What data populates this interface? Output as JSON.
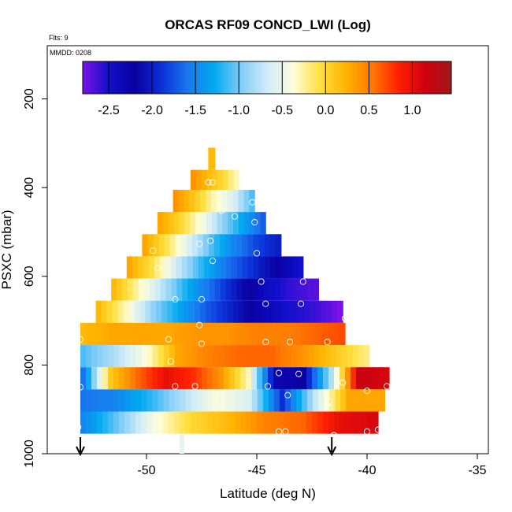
{
  "chart_data": {
    "type": "heatmap",
    "title": "ORCAS RF09 CONCD_LWI (Log)",
    "flight_label": "Flts: 9",
    "date_label": "MMDD: 0208",
    "xlabel": "Latitude (deg N)",
    "ylabel": "PSXC (mbar)",
    "xlim": [
      -54.5,
      -34.5
    ],
    "ylim": [
      1000,
      80
    ],
    "x_ticks": [
      -50,
      -45,
      -40,
      -35
    ],
    "x_tick_labels": [
      "-50",
      "-45",
      "-40",
      "-35"
    ],
    "y_ticks": [
      200,
      400,
      600,
      800,
      1000
    ],
    "y_tick_labels": [
      "200",
      "400",
      "600",
      "800",
      "1000"
    ],
    "colorbar": {
      "range": [
        -2.8,
        1.45
      ],
      "ticks": [
        -2.5,
        -2.0,
        -1.5,
        -1.0,
        -0.5,
        0.0,
        0.5,
        1.0
      ],
      "tick_labels": [
        "-2.5",
        "-2.0",
        "-1.5",
        "-1.0",
        "-0.5",
        "0.0",
        "0.5",
        "1.0"
      ],
      "colors": [
        "#7a12e6",
        "#1010cc",
        "#0a00a0",
        "#0a30d8",
        "#1a78f0",
        "#00aaf0",
        "#80ccf8",
        "#d0ecf8",
        "#fefedc",
        "#ffe040",
        "#ffb400",
        "#ff7800",
        "#ff2000",
        "#d00010",
        "#a01818"
      ]
    },
    "bands": [
      {
        "p_top": 310,
        "p_bottom": 360,
        "lat_start": -47.2,
        "lat_end": -46.9,
        "values": [
          0.2
        ]
      },
      {
        "p_top": 360,
        "p_bottom": 405,
        "lat_start": -48.0,
        "lat_end": -45.8,
        "values": [
          0.4,
          0.2,
          0.0,
          -0.3
        ]
      },
      {
        "p_top": 405,
        "p_bottom": 455,
        "lat_start": -48.8,
        "lat_end": -45.1,
        "values": [
          0.4,
          0.1,
          -0.3,
          -0.6,
          -1.1
        ]
      },
      {
        "p_top": 455,
        "p_bottom": 505,
        "lat_start": -49.5,
        "lat_end": -44.6,
        "values": [
          0.3,
          0.0,
          -0.4,
          -0.9,
          -1.3,
          -1.7
        ]
      },
      {
        "p_top": 505,
        "p_bottom": 555,
        "lat_start": -50.2,
        "lat_end": -43.9,
        "values": [
          0.3,
          -0.1,
          -0.6,
          -1.1,
          -1.5,
          -1.8,
          -2.0
        ]
      },
      {
        "p_top": 555,
        "p_bottom": 605,
        "lat_start": -50.9,
        "lat_end": -42.9,
        "values": [
          0.3,
          -0.1,
          -0.7,
          -1.2,
          -1.6,
          -1.9,
          -2.2,
          -2.5
        ]
      },
      {
        "p_top": 605,
        "p_bottom": 655,
        "lat_start": -51.6,
        "lat_end": -42.2,
        "values": [
          0.2,
          -0.3,
          -0.8,
          -1.3,
          -1.7,
          -2.1,
          -2.4,
          -2.6,
          -2.7
        ]
      },
      {
        "p_top": 655,
        "p_bottom": 705,
        "lat_start": -52.3,
        "lat_end": -41.1,
        "values": [
          0.2,
          -0.3,
          -0.9,
          -1.3,
          -1.7,
          -2.0,
          -2.3,
          -2.5,
          -2.6,
          -2.8
        ]
      },
      {
        "p_top": 705,
        "p_bottom": 755,
        "lat_start": -53.0,
        "lat_end": -41.0,
        "values": [
          0.2,
          0.3,
          0.3,
          0.3,
          0.4,
          0.4,
          0.5,
          0.5,
          0.6,
          0.7
        ]
      },
      {
        "p_top": 755,
        "p_bottom": 805,
        "lat_start": -53.0,
        "lat_end": -39.9,
        "values": [
          -1.1,
          -0.8,
          -0.4,
          0.3,
          0.5,
          0.6,
          0.6,
          0.4,
          0.1,
          -0.2
        ]
      },
      {
        "p_top": 805,
        "p_bottom": 855,
        "lat_start": -53.0,
        "lat_end": -39.0,
        "values": [
          -1.6,
          0.1,
          0.6,
          1.0,
          0.8,
          0.4,
          -0.3,
          -2.3,
          -2.2,
          -0.8,
          1.2,
          1.1
        ]
      },
      {
        "p_top": 855,
        "p_bottom": 905,
        "lat_start": -53.0,
        "lat_end": -39.2,
        "values": [
          -1.6,
          -1.5,
          -1.2,
          -0.8,
          -0.4,
          -0.6,
          -1.9,
          -0.7,
          0.3,
          0.3
        ]
      },
      {
        "p_top": 905,
        "p_bottom": 955,
        "lat_start": -53.0,
        "lat_end": -39.5,
        "values": [
          -1.5,
          -1.0,
          -0.4,
          0.0,
          0.2,
          0.5,
          0.6,
          1.0,
          1.1
        ]
      }
    ],
    "observation_points": [
      {
        "lat": -47.2,
        "p": 388
      },
      {
        "lat": -47.0,
        "p": 388
      },
      {
        "lat": -46.6,
        "p": 452
      },
      {
        "lat": -46.0,
        "p": 465
      },
      {
        "lat": -45.2,
        "p": 433
      },
      {
        "lat": -45.1,
        "p": 478
      },
      {
        "lat": -47.1,
        "p": 520
      },
      {
        "lat": -47.6,
        "p": 527
      },
      {
        "lat": -45.0,
        "p": 548
      },
      {
        "lat": -49.7,
        "p": 542
      },
      {
        "lat": -49.5,
        "p": 582
      },
      {
        "lat": -47.0,
        "p": 565
      },
      {
        "lat": -44.8,
        "p": 612
      },
      {
        "lat": -42.9,
        "p": 612
      },
      {
        "lat": -48.7,
        "p": 652
      },
      {
        "lat": -47.5,
        "p": 652
      },
      {
        "lat": -44.6,
        "p": 662
      },
      {
        "lat": -43.0,
        "p": 662
      },
      {
        "lat": -47.6,
        "p": 710
      },
      {
        "lat": -41.0,
        "p": 695
      },
      {
        "lat": -53.0,
        "p": 742
      },
      {
        "lat": -49.0,
        "p": 742
      },
      {
        "lat": -47.5,
        "p": 752
      },
      {
        "lat": -44.6,
        "p": 748
      },
      {
        "lat": -43.5,
        "p": 748
      },
      {
        "lat": -41.8,
        "p": 748
      },
      {
        "lat": -48.9,
        "p": 792
      },
      {
        "lat": -44.0,
        "p": 818
      },
      {
        "lat": -43.1,
        "p": 820
      },
      {
        "lat": -48.7,
        "p": 848
      },
      {
        "lat": -47.8,
        "p": 848
      },
      {
        "lat": -53.0,
        "p": 850
      },
      {
        "lat": -44.5,
        "p": 848
      },
      {
        "lat": -43.6,
        "p": 868
      },
      {
        "lat": -41.1,
        "p": 840
      },
      {
        "lat": -40.0,
        "p": 858
      },
      {
        "lat": -39.1,
        "p": 848
      },
      {
        "lat": -41.7,
        "p": 882
      },
      {
        "lat": -41.7,
        "p": 897
      },
      {
        "lat": -53.1,
        "p": 940
      },
      {
        "lat": -44.0,
        "p": 950
      },
      {
        "lat": -43.7,
        "p": 950
      },
      {
        "lat": -41.5,
        "p": 958
      },
      {
        "lat": -40.0,
        "p": 950
      },
      {
        "lat": -39.5,
        "p": 946
      }
    ],
    "arrows_lat": [
      -53.0,
      -41.6
    ],
    "ground_marker": {
      "lat": -48.4,
      "p_top": 955,
      "p_bottom": 1000
    }
  }
}
